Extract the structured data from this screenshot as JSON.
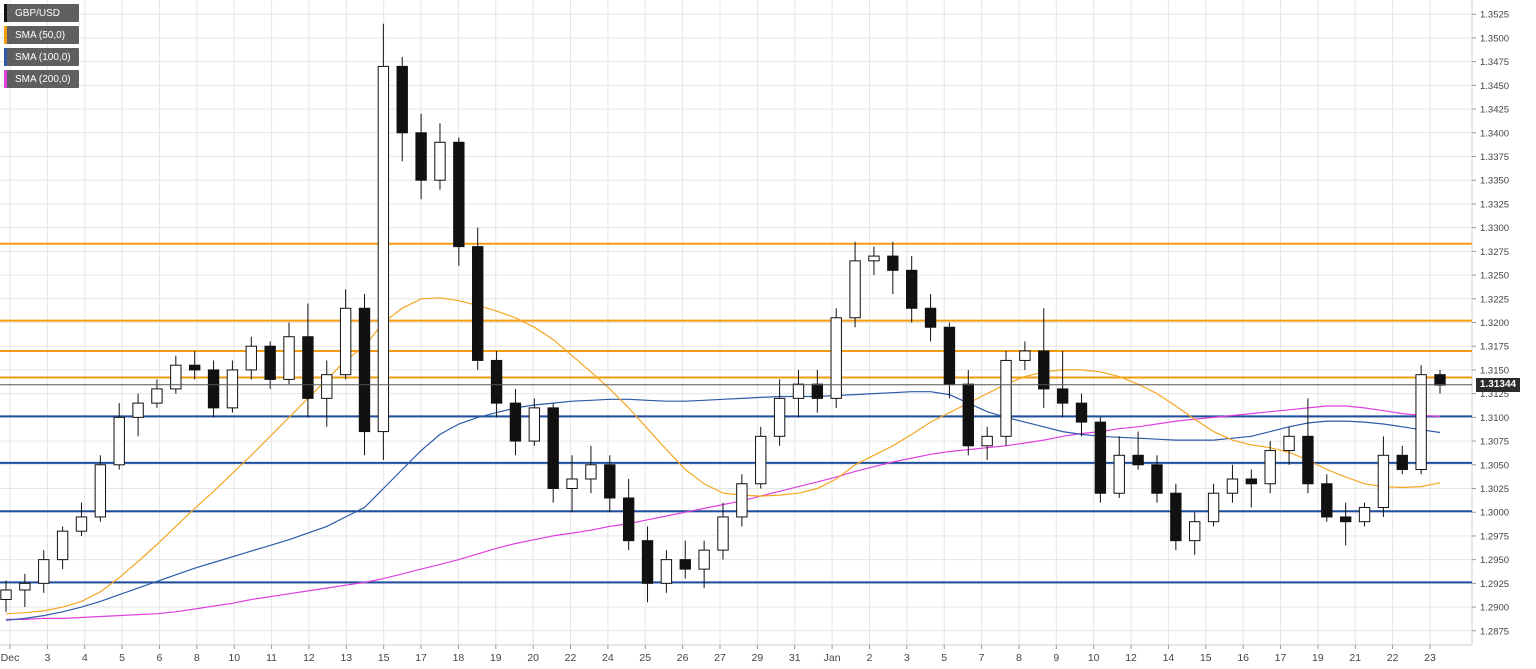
{
  "chart_data": {
    "type": "candlestick",
    "symbol": "GBP/USD",
    "legend": [
      {
        "label": "GBP/USD",
        "color": "#111111"
      },
      {
        "label": "SMA (50,0)",
        "color": "#f39c12"
      },
      {
        "label": "SMA (100,0)",
        "color": "#2e5aa8"
      },
      {
        "label": "SMA (200,0)",
        "color": "#e040e0"
      }
    ],
    "ylim": [
      1.286,
      1.354
    ],
    "y_ticks": [
      "1.3525",
      "1.3500",
      "1.3475",
      "1.3450",
      "1.3425",
      "1.3400",
      "1.3375",
      "1.3350",
      "1.3325",
      "1.3300",
      "1.3275",
      "1.3250",
      "1.3225",
      "1.3200",
      "1.3175",
      "1.3150",
      "1.3125",
      "1.3100",
      "1.3075",
      "1.3050",
      "1.3025",
      "1.3000",
      "1.2975",
      "1.2950",
      "1.2925",
      "1.2900",
      "1.2875"
    ],
    "x_ticks": [
      "Dec",
      "3",
      "4",
      "5",
      "6",
      "8",
      "10",
      "11",
      "12",
      "13",
      "15",
      "17",
      "18",
      "19",
      "20",
      "22",
      "24",
      "25",
      "26",
      "27",
      "29",
      "31",
      "Jan",
      "2",
      "3",
      "5",
      "7",
      "8",
      "9",
      "10",
      "12",
      "14",
      "15",
      "16",
      "17",
      "19",
      "21",
      "22",
      "23"
    ],
    "last_price": "1.31344",
    "last_price_value": 1.31344,
    "resistance_levels": [
      1.3283,
      1.3202,
      1.317,
      1.3142
    ],
    "support_levels": [
      1.3101,
      1.3052,
      1.3001,
      1.2926
    ],
    "colors": {
      "resistance": "#f39c12",
      "support": "#1f4e9c",
      "sma50": "#f5a623",
      "sma100": "#2e5aa8",
      "sma200": "#e040e0",
      "up": "#ffffff",
      "down": "#111111",
      "grid": "#e6e6e6"
    },
    "candles": [
      [
        1.2908,
        1.2928,
        1.2895,
        1.2918
      ],
      [
        1.2918,
        1.2935,
        1.29,
        1.2925
      ],
      [
        1.2925,
        1.296,
        1.2915,
        1.295
      ],
      [
        1.295,
        1.2985,
        1.294,
        1.298
      ],
      [
        1.298,
        1.301,
        1.2975,
        1.2995
      ],
      [
        1.2995,
        1.306,
        1.299,
        1.305
      ],
      [
        1.305,
        1.3115,
        1.3045,
        1.31
      ],
      [
        1.31,
        1.3125,
        1.308,
        1.3115
      ],
      [
        1.3115,
        1.314,
        1.311,
        1.313
      ],
      [
        1.313,
        1.3165,
        1.3125,
        1.3155
      ],
      [
        1.3155,
        1.317,
        1.314,
        1.315
      ],
      [
        1.315,
        1.316,
        1.31,
        1.311
      ],
      [
        1.311,
        1.316,
        1.3105,
        1.315
      ],
      [
        1.315,
        1.3185,
        1.314,
        1.3175
      ],
      [
        1.3175,
        1.318,
        1.313,
        1.314
      ],
      [
        1.314,
        1.32,
        1.3135,
        1.3185
      ],
      [
        1.3185,
        1.322,
        1.31,
        1.312
      ],
      [
        1.312,
        1.316,
        1.309,
        1.3145
      ],
      [
        1.3145,
        1.3235,
        1.314,
        1.3215
      ],
      [
        1.3215,
        1.323,
        1.306,
        1.3085
      ],
      [
        1.3085,
        1.3515,
        1.3055,
        1.347
      ],
      [
        1.347,
        1.348,
        1.337,
        1.34
      ],
      [
        1.34,
        1.342,
        1.333,
        1.335
      ],
      [
        1.335,
        1.341,
        1.334,
        1.339
      ],
      [
        1.339,
        1.3395,
        1.326,
        1.328
      ],
      [
        1.328,
        1.33,
        1.315,
        1.316
      ],
      [
        1.316,
        1.317,
        1.31,
        1.3115
      ],
      [
        1.3115,
        1.313,
        1.306,
        1.3075
      ],
      [
        1.3075,
        1.312,
        1.307,
        1.311
      ],
      [
        1.311,
        1.3115,
        1.301,
        1.3025
      ],
      [
        1.3025,
        1.306,
        1.3,
        1.3035
      ],
      [
        1.3035,
        1.307,
        1.302,
        1.305
      ],
      [
        1.305,
        1.306,
        1.3,
        1.3015
      ],
      [
        1.3015,
        1.3035,
        1.296,
        1.297
      ],
      [
        1.297,
        1.2985,
        1.2905,
        1.2925
      ],
      [
        1.2925,
        1.296,
        1.2915,
        1.295
      ],
      [
        1.295,
        1.297,
        1.293,
        1.294
      ],
      [
        1.294,
        1.297,
        1.292,
        1.296
      ],
      [
        1.296,
        1.301,
        1.295,
        1.2995
      ],
      [
        1.2995,
        1.304,
        1.2985,
        1.303
      ],
      [
        1.303,
        1.309,
        1.3025,
        1.308
      ],
      [
        1.308,
        1.314,
        1.307,
        1.312
      ],
      [
        1.312,
        1.315,
        1.31,
        1.3135
      ],
      [
        1.3135,
        1.315,
        1.3105,
        1.312
      ],
      [
        1.312,
        1.3215,
        1.311,
        1.3205
      ],
      [
        1.3205,
        1.3285,
        1.3195,
        1.3265
      ],
      [
        1.3265,
        1.328,
        1.325,
        1.327
      ],
      [
        1.327,
        1.3285,
        1.323,
        1.3255
      ],
      [
        1.3255,
        1.327,
        1.32,
        1.3215
      ],
      [
        1.3215,
        1.323,
        1.318,
        1.3195
      ],
      [
        1.3195,
        1.32,
        1.312,
        1.3135
      ],
      [
        1.3135,
        1.315,
        1.306,
        1.307
      ],
      [
        1.307,
        1.309,
        1.3055,
        1.308
      ],
      [
        1.308,
        1.317,
        1.307,
        1.316
      ],
      [
        1.316,
        1.318,
        1.315,
        1.317
      ],
      [
        1.317,
        1.3215,
        1.311,
        1.313
      ],
      [
        1.313,
        1.317,
        1.31,
        1.3115
      ],
      [
        1.3115,
        1.3125,
        1.308,
        1.3095
      ],
      [
        1.3095,
        1.31,
        1.301,
        1.302
      ],
      [
        1.302,
        1.308,
        1.3015,
        1.306
      ],
      [
        1.306,
        1.3085,
        1.3045,
        1.305
      ],
      [
        1.305,
        1.306,
        1.301,
        1.302
      ],
      [
        1.302,
        1.303,
        1.296,
        1.297
      ],
      [
        1.297,
        1.3,
        1.2955,
        1.299
      ],
      [
        1.299,
        1.303,
        1.2985,
        1.302
      ],
      [
        1.302,
        1.305,
        1.301,
        1.3035
      ],
      [
        1.3035,
        1.3045,
        1.3005,
        1.303
      ],
      [
        1.303,
        1.3075,
        1.302,
        1.3065
      ],
      [
        1.3065,
        1.309,
        1.305,
        1.308
      ],
      [
        1.308,
        1.312,
        1.302,
        1.303
      ],
      [
        1.303,
        1.304,
        1.299,
        1.2995
      ],
      [
        1.2995,
        1.301,
        1.2965,
        1.299
      ],
      [
        1.299,
        1.301,
        1.2985,
        1.3005
      ],
      [
        1.3005,
        1.308,
        1.2995,
        1.306
      ],
      [
        1.306,
        1.307,
        1.304,
        1.3045
      ],
      [
        1.3045,
        1.3155,
        1.304,
        1.3145
      ],
      [
        1.3145,
        1.315,
        1.3125,
        1.3134
      ]
    ],
    "sma50": [
      1.2893,
      1.2894,
      1.2896,
      1.29,
      1.2906,
      1.2916,
      1.2931,
      1.2948,
      1.2966,
      1.2985,
      1.3004,
      1.3022,
      1.3041,
      1.306,
      1.308,
      1.31,
      1.312,
      1.314,
      1.316,
      1.3175,
      1.32,
      1.3215,
      1.3225,
      1.3226,
      1.3223,
      1.3218,
      1.3212,
      1.3205,
      1.3195,
      1.3182,
      1.3165,
      1.3148,
      1.313,
      1.311,
      1.3088,
      1.3066,
      1.3045,
      1.303,
      1.302,
      1.3018,
      1.3017,
      1.3018,
      1.302,
      1.3025,
      1.3035,
      1.305,
      1.306,
      1.307,
      1.3082,
      1.3095,
      1.3105,
      1.3115,
      1.3125,
      1.3135,
      1.3143,
      1.3148,
      1.315,
      1.315,
      1.3148,
      1.3143,
      1.3135,
      1.3125,
      1.3112,
      1.3098,
      1.3085,
      1.3076,
      1.3071,
      1.3068,
      1.3063,
      1.3055,
      1.3045,
      1.3037,
      1.303,
      1.3027,
      1.3026,
      1.3027,
      1.3031
    ],
    "sma100": [
      1.2886,
      1.2888,
      1.2891,
      1.2895,
      1.29,
      1.2906,
      1.2913,
      1.292,
      1.2927,
      1.2934,
      1.2941,
      1.2947,
      1.2953,
      1.2959,
      1.2965,
      1.2971,
      1.2978,
      1.2985,
      1.2995,
      1.3005,
      1.3025,
      1.3045,
      1.3065,
      1.3082,
      1.3093,
      1.31,
      1.3105,
      1.311,
      1.3113,
      1.3115,
      1.3117,
      1.3118,
      1.3119,
      1.3119,
      1.3118,
      1.3117,
      1.3117,
      1.3118,
      1.3119,
      1.312,
      1.3121,
      1.3122,
      1.3122,
      1.3122,
      1.3123,
      1.3124,
      1.3125,
      1.3126,
      1.3127,
      1.3127,
      1.3124,
      1.3115,
      1.3106,
      1.31,
      1.3095,
      1.309,
      1.3085,
      1.3082,
      1.308,
      1.3079,
      1.3078,
      1.3077,
      1.3076,
      1.3076,
      1.3076,
      1.3078,
      1.308,
      1.3085,
      1.309,
      1.3094,
      1.3096,
      1.3096,
      1.3095,
      1.3093,
      1.309,
      1.3087,
      1.3084
    ],
    "sma200": [
      1.2887,
      1.2887,
      1.2888,
      1.2888,
      1.2889,
      1.289,
      1.2891,
      1.2892,
      1.2893,
      1.2895,
      1.2898,
      1.2901,
      1.2904,
      1.2908,
      1.2911,
      1.2914,
      1.2917,
      1.292,
      1.2923,
      1.2926,
      1.293,
      1.2935,
      1.294,
      1.2945,
      1.295,
      1.2956,
      1.2962,
      1.2967,
      1.2971,
      1.2975,
      1.2978,
      1.2981,
      1.2985,
      1.2988,
      1.2992,
      1.2996,
      1.3,
      1.3004,
      1.3008,
      1.3012,
      1.3017,
      1.3022,
      1.3027,
      1.3032,
      1.3037,
      1.3043,
      1.3048,
      1.3053,
      1.3057,
      1.3061,
      1.3064,
      1.3066,
      1.3068,
      1.307,
      1.3073,
      1.3076,
      1.308,
      1.3083,
      1.3085,
      1.3088,
      1.309,
      1.3093,
      1.3096,
      1.3098,
      1.31,
      1.3102,
      1.3104,
      1.3106,
      1.3108,
      1.311,
      1.3112,
      1.3112,
      1.311,
      1.3107,
      1.3104,
      1.3102,
      1.3101
    ]
  }
}
